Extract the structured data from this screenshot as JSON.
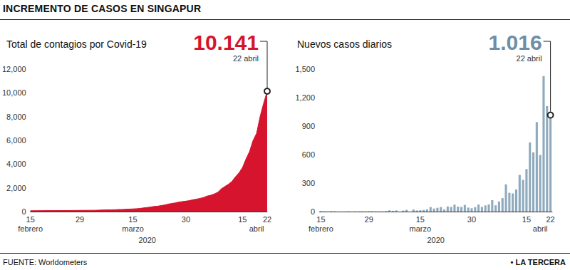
{
  "header": "INCREMENTO DE CASOS EN SINGAPUR",
  "source": "FUENTE: Worldometers",
  "brand": "• LA TERCERA",
  "chart_data": [
    {
      "type": "area",
      "title": "Total de contagios por Covid-19",
      "categories": [
        "15",
        null,
        null,
        null,
        null,
        null,
        null,
        null,
        null,
        null,
        null,
        null,
        null,
        null,
        "29",
        null,
        null,
        null,
        null,
        null,
        null,
        null,
        null,
        null,
        null,
        null,
        null,
        null,
        null,
        "15",
        null,
        null,
        null,
        null,
        null,
        null,
        null,
        null,
        null,
        null,
        null,
        null,
        null,
        null,
        "30",
        null,
        null,
        null,
        null,
        null,
        null,
        null,
        null,
        null,
        null,
        null,
        null,
        null,
        null,
        null,
        "15",
        null,
        null,
        null,
        null,
        null,
        null,
        "22"
      ],
      "month_labels": [
        "febrero",
        null,
        null,
        null,
        null,
        null,
        null,
        null,
        null,
        null,
        null,
        null,
        null,
        null,
        null,
        null,
        null,
        null,
        null,
        null,
        null,
        null,
        null,
        null,
        null,
        null,
        null,
        null,
        null,
        "marzo",
        null,
        null,
        null,
        null,
        null,
        null,
        null,
        null,
        null,
        null,
        null,
        null,
        null,
        null,
        null,
        null,
        null,
        null,
        null,
        null,
        null,
        null,
        null,
        null,
        null,
        null,
        null,
        null,
        null,
        null,
        null,
        null,
        null,
        null,
        "abril",
        null,
        null,
        null
      ],
      "year_label": "2020",
      "values": [
        72,
        75,
        77,
        81,
        84,
        84,
        85,
        86,
        89,
        89,
        91,
        93,
        96,
        98,
        102,
        106,
        108,
        110,
        112,
        117,
        130,
        138,
        150,
        150,
        160,
        178,
        178,
        200,
        212,
        226,
        243,
        266,
        313,
        345,
        385,
        432,
        455,
        509,
        558,
        631,
        683,
        732,
        802,
        844,
        879,
        926,
        1000,
        1049,
        1114,
        1189,
        1309,
        1375,
        1481,
        1623,
        1910,
        2108,
        2299,
        2532,
        2918,
        3252,
        3699,
        4427,
        5050,
        5992,
        6588,
        8014,
        9125,
        10141
      ],
      "color": "#d7142e",
      "ylim": [
        0,
        12000
      ],
      "yticks": [
        0,
        2000,
        4000,
        6000,
        8000,
        10000,
        12000
      ],
      "grid": false,
      "annotation": {
        "value": 10141,
        "label": "10.141",
        "date": "22 abril"
      }
    },
    {
      "type": "bar",
      "title": "Nuevos casos diarios",
      "categories": [
        "15",
        null,
        null,
        null,
        null,
        null,
        null,
        null,
        null,
        null,
        null,
        null,
        null,
        null,
        "29",
        null,
        null,
        null,
        null,
        null,
        null,
        null,
        null,
        null,
        null,
        null,
        null,
        null,
        null,
        "15",
        null,
        null,
        null,
        null,
        null,
        null,
        null,
        null,
        null,
        null,
        null,
        null,
        null,
        null,
        "30",
        null,
        null,
        null,
        null,
        null,
        null,
        null,
        null,
        null,
        null,
        null,
        null,
        null,
        null,
        null,
        "15",
        null,
        null,
        null,
        null,
        null,
        null,
        "22"
      ],
      "month_labels": [
        "febrero",
        null,
        null,
        null,
        null,
        null,
        null,
        null,
        null,
        null,
        null,
        null,
        null,
        null,
        null,
        null,
        null,
        null,
        null,
        null,
        null,
        null,
        null,
        null,
        null,
        null,
        null,
        null,
        null,
        "marzo",
        null,
        null,
        null,
        null,
        null,
        null,
        null,
        null,
        null,
        null,
        null,
        null,
        null,
        null,
        null,
        null,
        null,
        null,
        null,
        null,
        null,
        null,
        null,
        null,
        null,
        null,
        null,
        null,
        null,
        null,
        null,
        null,
        null,
        null,
        "abril",
        null,
        null,
        null
      ],
      "year_label": "2020",
      "values": [
        5,
        3,
        2,
        4,
        3,
        0,
        1,
        1,
        3,
        0,
        2,
        2,
        3,
        2,
        4,
        4,
        2,
        2,
        2,
        5,
        13,
        8,
        12,
        0,
        10,
        18,
        0,
        22,
        12,
        14,
        17,
        23,
        47,
        32,
        40,
        47,
        23,
        54,
        49,
        73,
        52,
        49,
        70,
        42,
        35,
        47,
        74,
        49,
        65,
        75,
        120,
        66,
        106,
        142,
        287,
        198,
        191,
        233,
        386,
        334,
        447,
        728,
        623,
        942,
        596,
        1426,
        1111,
        1016
      ],
      "color": "#8faabd",
      "ylim": [
        0,
        1500
      ],
      "yticks": [
        0,
        300,
        600,
        900,
        1200,
        1500
      ],
      "grid": false,
      "annotation": {
        "value": 1016,
        "label": "1.016",
        "date": "22 abril"
      }
    }
  ]
}
